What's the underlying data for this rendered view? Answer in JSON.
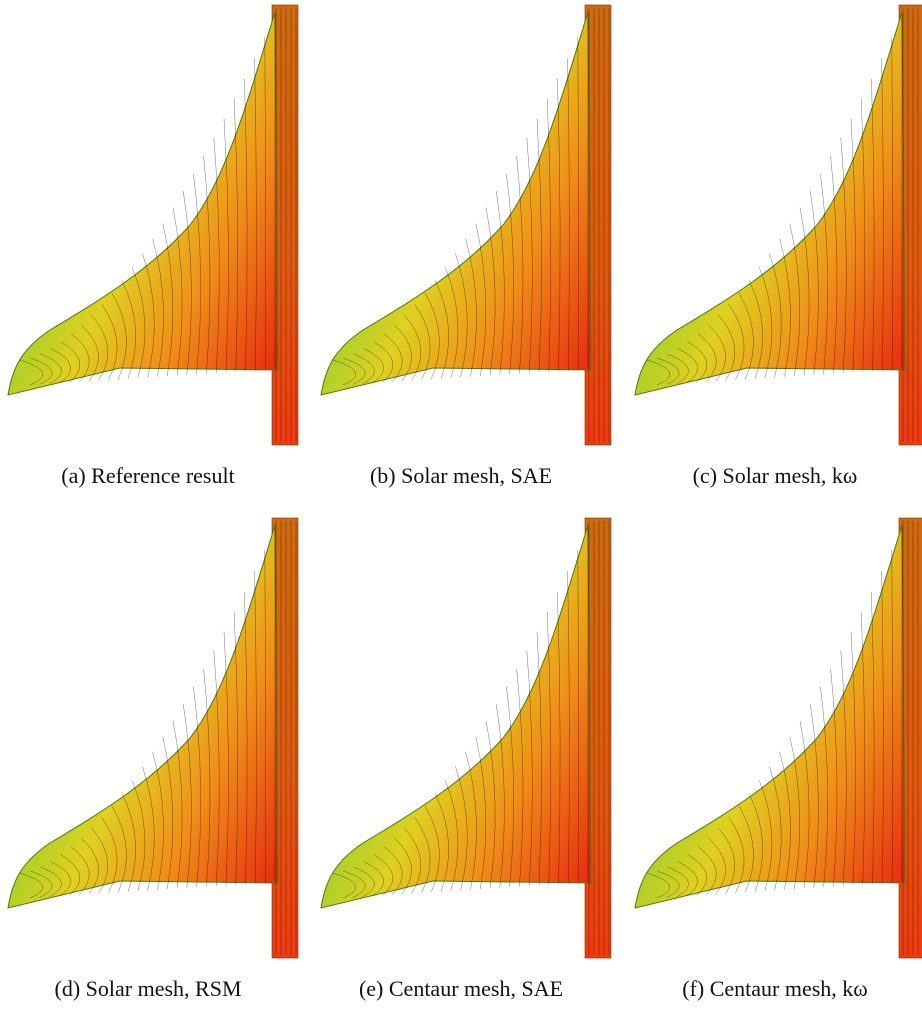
{
  "figure": {
    "panels": [
      {
        "caption": "(a) Reference result"
      },
      {
        "caption": "(b) Solar mesh, SAE"
      },
      {
        "caption": "(c) Solar mesh, kω"
      },
      {
        "caption": "(d) Solar mesh, RSM"
      },
      {
        "caption": "(e) Centaur mesh, SAE"
      },
      {
        "caption": "(f) Centaur mesh, kω"
      }
    ]
  }
}
